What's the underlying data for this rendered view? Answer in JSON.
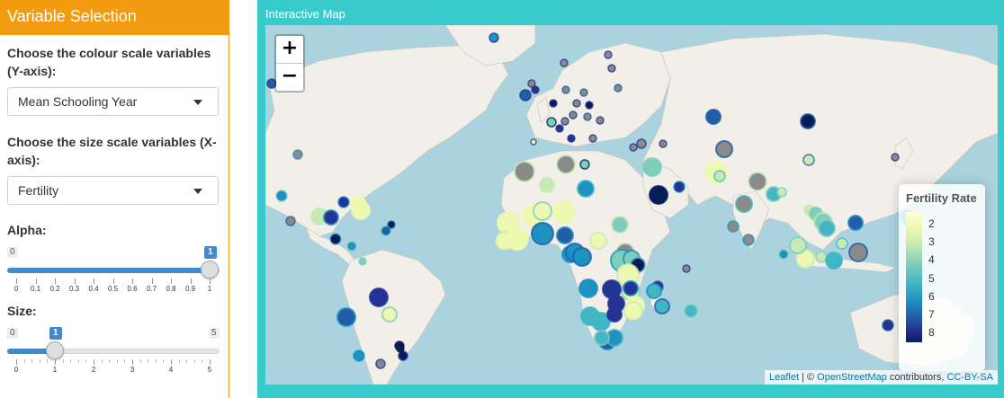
{
  "sidebar": {
    "title": "Variable Selection",
    "colour_label": "Choose the colour scale variables (Y-axis):",
    "colour_selected": "Mean Schooling Year",
    "size_label": "Choose the size scale variables (X-axis):",
    "size_selected": "Fertility",
    "alpha": {
      "label": "Alpha:",
      "min": "0",
      "max": "1",
      "value": "1",
      "fraction": 1.0,
      "ticks": [
        "0",
        "0.1",
        "0.2",
        "0.3",
        "0.4",
        "0.5",
        "0.6",
        "0.7",
        "0.8",
        "0.9",
        "1"
      ]
    },
    "size": {
      "label": "Size:",
      "min": "0",
      "max": "5",
      "value": "1",
      "fraction": 0.2,
      "ticks": [
        "0",
        "1",
        "2",
        "3",
        "4",
        "5"
      ]
    }
  },
  "main": {
    "panel_title": "Interactive Map",
    "zoom_in": "+",
    "zoom_out": "−",
    "legend": {
      "title": "Fertility Rate",
      "labels": [
        "2",
        "3",
        "4",
        "5",
        "6",
        "7",
        "8"
      ]
    },
    "attribution": {
      "leaflet": "Leaflet",
      "sep": " | © ",
      "osm": "OpenStreetMap",
      "contrib": " contributors, ",
      "license": "CC-BY-SA"
    }
  },
  "colors": {
    "header": "#f39c12",
    "panel": "#39cbcb",
    "ocean": "#aad3df",
    "land": "#f2efe9",
    "slider": "#428bca"
  }
}
